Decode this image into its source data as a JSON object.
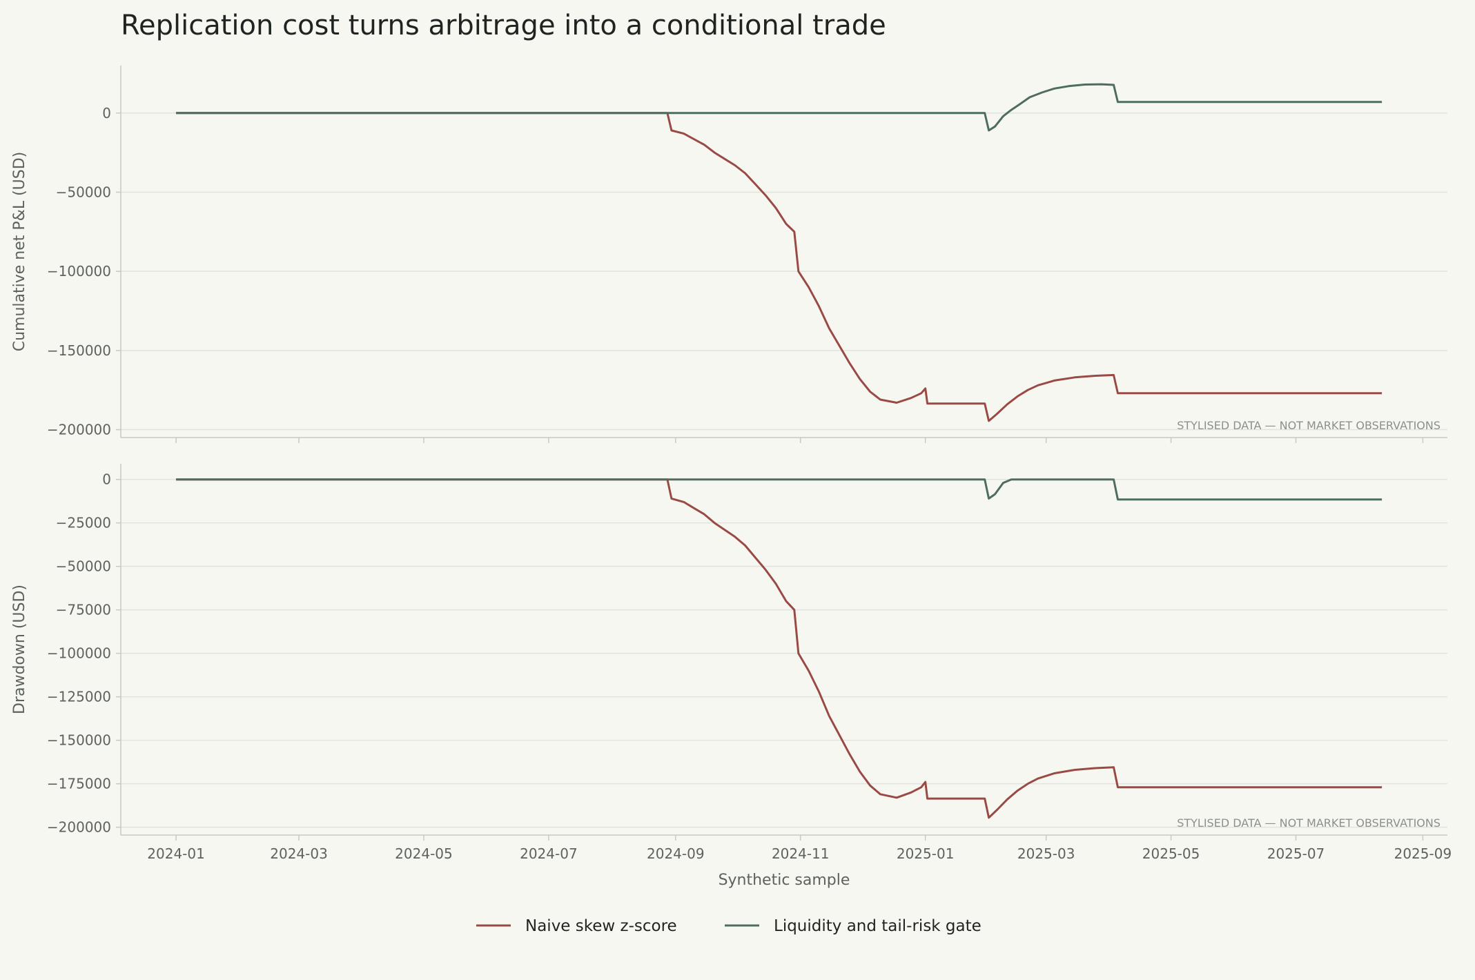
{
  "title": "Replication cost turns arbitrage into a conditional trade",
  "note": "STYLISED DATA — NOT MARKET OBSERVATIONS",
  "legend": {
    "placement": "bottom-center"
  },
  "colors": {
    "background": "#f7f7f2",
    "grid": "#e3e3dd",
    "spine": "#c9c9c3"
  },
  "chart_data": [
    {
      "type": "line",
      "ylabel": "Cumulative net P&L (USD)",
      "xlabel": "",
      "xlim": [
        "2023-12-05",
        "2025-09-13"
      ],
      "ylim": [
        -205000,
        30000
      ],
      "y_ticks": [
        0,
        -50000,
        -100000,
        -150000,
        -200000
      ],
      "y_tick_labels": [
        "0",
        "−50000",
        "−100000",
        "−150000",
        "−200000"
      ],
      "grid": "horizontal",
      "series": [
        {
          "name": "Naive skew z-score",
          "color": "#9a4a44",
          "points": [
            [
              "2024-01-01",
              0
            ],
            [
              "2024-08-28",
              0
            ],
            [
              "2024-08-30",
              -11000
            ],
            [
              "2024-09-05",
              -13000
            ],
            [
              "2024-09-10",
              -16500
            ],
            [
              "2024-09-15",
              -20000
            ],
            [
              "2024-09-20",
              -25000
            ],
            [
              "2024-09-25",
              -29000
            ],
            [
              "2024-09-30",
              -33000
            ],
            [
              "2024-10-05",
              -38000
            ],
            [
              "2024-10-10",
              -45000
            ],
            [
              "2024-10-15",
              -52000
            ],
            [
              "2024-10-20",
              -60000
            ],
            [
              "2024-10-25",
              -70000
            ],
            [
              "2024-10-29",
              -75000
            ],
            [
              "2024-10-31",
              -100000
            ],
            [
              "2024-11-05",
              -110000
            ],
            [
              "2024-11-10",
              -122000
            ],
            [
              "2024-11-15",
              -136000
            ],
            [
              "2024-11-20",
              -147000
            ],
            [
              "2024-11-25",
              -158000
            ],
            [
              "2024-11-30",
              -168000
            ],
            [
              "2024-12-05",
              -176000
            ],
            [
              "2024-12-10",
              -181000
            ],
            [
              "2024-12-18",
              -183000
            ],
            [
              "2024-12-25",
              -180000
            ],
            [
              "2024-12-30",
              -177000
            ],
            [
              "2025-01-01",
              -174000
            ],
            [
              "2025-01-02",
              -183500
            ],
            [
              "2025-01-30",
              -183500
            ],
            [
              "2025-02-01",
              -194500
            ],
            [
              "2025-02-05",
              -190000
            ],
            [
              "2025-02-10",
              -184000
            ],
            [
              "2025-02-15",
              -179000
            ],
            [
              "2025-02-20",
              -175000
            ],
            [
              "2025-02-25",
              -172000
            ],
            [
              "2025-03-05",
              -169000
            ],
            [
              "2025-03-15",
              -167000
            ],
            [
              "2025-03-25",
              -166000
            ],
            [
              "2025-04-03",
              -165500
            ],
            [
              "2025-04-05",
              -177000
            ],
            [
              "2025-08-12",
              -177000
            ]
          ]
        },
        {
          "name": "Liquidity and tail-risk gate",
          "color": "#4e6d5e",
          "points": [
            [
              "2024-01-01",
              0
            ],
            [
              "2025-01-30",
              0
            ],
            [
              "2025-02-01",
              -11000
            ],
            [
              "2025-02-04",
              -8500
            ],
            [
              "2025-02-08",
              -2000
            ],
            [
              "2025-02-12",
              2000
            ],
            [
              "2025-02-16",
              5500
            ],
            [
              "2025-02-21",
              10000
            ],
            [
              "2025-02-27",
              13000
            ],
            [
              "2025-03-05",
              15500
            ],
            [
              "2025-03-12",
              17000
            ],
            [
              "2025-03-20",
              18000
            ],
            [
              "2025-03-28",
              18200
            ],
            [
              "2025-04-03",
              17800
            ],
            [
              "2025-04-05",
              7000
            ],
            [
              "2025-08-12",
              7000
            ]
          ]
        }
      ]
    },
    {
      "type": "line",
      "ylabel": "Drawdown (USD)",
      "xlabel": "Synthetic sample",
      "xlim": [
        "2023-12-05",
        "2025-09-13"
      ],
      "ylim": [
        -204500,
        9000
      ],
      "y_ticks": [
        0,
        -25000,
        -50000,
        -75000,
        -100000,
        -125000,
        -150000,
        -175000,
        -200000
      ],
      "y_tick_labels": [
        "0",
        "−25000",
        "−50000",
        "−75000",
        "−100000",
        "−125000",
        "−150000",
        "−175000",
        "−200000"
      ],
      "x_ticks": [
        "2024-01-01",
        "2024-03-01",
        "2024-05-01",
        "2024-07-01",
        "2024-09-01",
        "2024-11-01",
        "2025-01-01",
        "2025-03-01",
        "2025-05-01",
        "2025-07-01",
        "2025-09-01"
      ],
      "x_tick_labels": [
        "2024-01",
        "2024-03",
        "2024-05",
        "2024-07",
        "2024-09",
        "2024-11",
        "2025-01",
        "2025-03",
        "2025-05",
        "2025-07",
        "2025-09"
      ],
      "grid": "horizontal",
      "series": [
        {
          "name": "Naive skew z-score",
          "color": "#9a4a44",
          "points": [
            [
              "2024-01-01",
              0
            ],
            [
              "2024-08-28",
              0
            ],
            [
              "2024-08-30",
              -11000
            ],
            [
              "2024-09-05",
              -13000
            ],
            [
              "2024-09-10",
              -16500
            ],
            [
              "2024-09-15",
              -20000
            ],
            [
              "2024-09-20",
              -25000
            ],
            [
              "2024-09-25",
              -29000
            ],
            [
              "2024-09-30",
              -33000
            ],
            [
              "2024-10-05",
              -38000
            ],
            [
              "2024-10-10",
              -45000
            ],
            [
              "2024-10-15",
              -52000
            ],
            [
              "2024-10-20",
              -60000
            ],
            [
              "2024-10-25",
              -70000
            ],
            [
              "2024-10-29",
              -75000
            ],
            [
              "2024-10-31",
              -100000
            ],
            [
              "2024-11-05",
              -110000
            ],
            [
              "2024-11-10",
              -122000
            ],
            [
              "2024-11-15",
              -136000
            ],
            [
              "2024-11-20",
              -147000
            ],
            [
              "2024-11-25",
              -158000
            ],
            [
              "2024-11-30",
              -168000
            ],
            [
              "2024-12-05",
              -176000
            ],
            [
              "2024-12-10",
              -181000
            ],
            [
              "2024-12-18",
              -183000
            ],
            [
              "2024-12-25",
              -180000
            ],
            [
              "2024-12-30",
              -177000
            ],
            [
              "2025-01-01",
              -174000
            ],
            [
              "2025-01-02",
              -183500
            ],
            [
              "2025-01-30",
              -183500
            ],
            [
              "2025-02-01",
              -194500
            ],
            [
              "2025-02-05",
              -190000
            ],
            [
              "2025-02-10",
              -184000
            ],
            [
              "2025-02-15",
              -179000
            ],
            [
              "2025-02-20",
              -175000
            ],
            [
              "2025-02-25",
              -172000
            ],
            [
              "2025-03-05",
              -169000
            ],
            [
              "2025-03-15",
              -167000
            ],
            [
              "2025-03-25",
              -166000
            ],
            [
              "2025-04-03",
              -165500
            ],
            [
              "2025-04-05",
              -177000
            ],
            [
              "2025-08-12",
              -177000
            ]
          ]
        },
        {
          "name": "Liquidity and tail-risk gate",
          "color": "#4e6d5e",
          "points": [
            [
              "2024-01-01",
              0
            ],
            [
              "2025-01-30",
              0
            ],
            [
              "2025-02-01",
              -11000
            ],
            [
              "2025-02-04",
              -8500
            ],
            [
              "2025-02-08",
              -2000
            ],
            [
              "2025-02-12",
              0
            ],
            [
              "2025-04-03",
              0
            ],
            [
              "2025-04-05",
              -11500
            ],
            [
              "2025-08-12",
              -11500
            ]
          ]
        }
      ]
    }
  ]
}
